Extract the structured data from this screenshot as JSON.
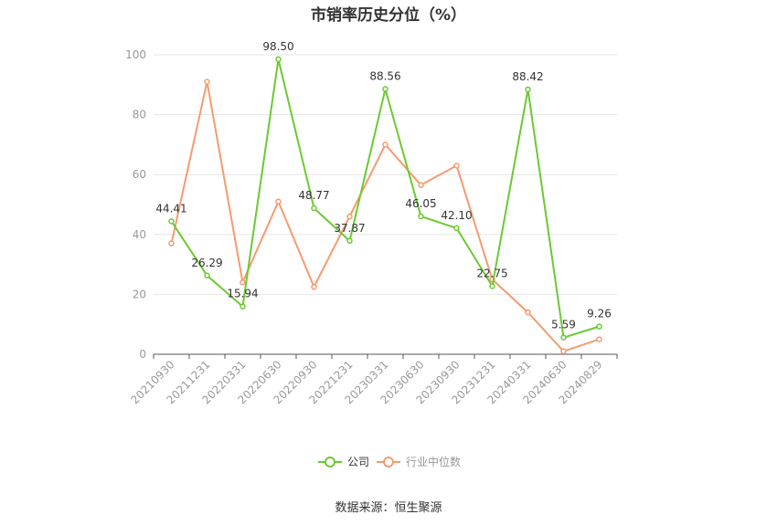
{
  "source": "数据来源：恒生聚源",
  "colors": {
    "company": "#6cc932",
    "industry": "#f59b70",
    "grid": "#e6e6e6",
    "axis": "#555555"
  },
  "chart_data": {
    "type": "line",
    "title": "市销率历史分位（%）",
    "xlabel": "",
    "ylabel": "",
    "ylim": [
      0,
      100
    ],
    "yticks": [
      0,
      20,
      40,
      60,
      80,
      100
    ],
    "grid": true,
    "legend_position": "bottom",
    "categories": [
      "20210930",
      "20211231",
      "20220331",
      "20220630",
      "20220930",
      "20221231",
      "20230331",
      "20230630",
      "20230930",
      "20231231",
      "20240331",
      "20240630",
      "20240829"
    ],
    "series": [
      {
        "name": "公司",
        "values": [
          44.41,
          26.29,
          15.94,
          98.5,
          48.77,
          37.87,
          88.56,
          46.05,
          42.1,
          22.75,
          88.42,
          5.59,
          9.26
        ],
        "labels": [
          "44.41",
          "26.29",
          "15.94",
          "98.50",
          "48.77",
          "37.87",
          "88.56",
          "46.05",
          "42.10",
          "22.75",
          "88.42",
          "5.59",
          "9.26"
        ]
      },
      {
        "name": "行业中位数",
        "values": [
          37,
          91,
          24,
          51,
          22.5,
          46,
          70,
          56.5,
          63,
          25,
          14,
          1,
          5
        ]
      }
    ]
  }
}
